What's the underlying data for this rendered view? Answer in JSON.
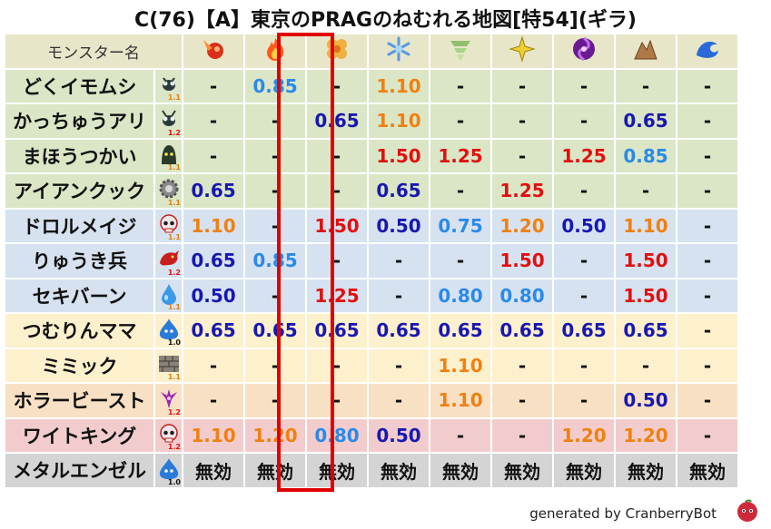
{
  "title": "C(76)【A】東京のPRAGのねむれる地図[特54](ギラ)",
  "header": {
    "name_label": "モンスター名"
  },
  "columns": [
    {
      "icon": "fire-orb-icon",
      "color": "#e0471c"
    },
    {
      "icon": "flame-icon",
      "color": "#ff6a1a"
    },
    {
      "icon": "explosion-icon",
      "color": "#e8b040"
    },
    {
      "icon": "ice-crystal-icon",
      "color": "#7fb6e8"
    },
    {
      "icon": "tornado-icon",
      "color": "#b8d890"
    },
    {
      "icon": "lightning-icon",
      "color": "#e8d040"
    },
    {
      "icon": "dark-vortex-icon",
      "color": "#7a2aa0"
    },
    {
      "icon": "rock-icon",
      "color": "#a07040"
    },
    {
      "icon": "wave-icon",
      "color": "#2a6ad8"
    }
  ],
  "colors": {
    "blue": "#1818b0",
    "lightblue": "#2a8ae8",
    "orange": "#f08010",
    "red": "#e01010",
    "black": "#111111"
  },
  "rows": [
    {
      "name": "どくイモムシ",
      "icon": "bug-icon",
      "mult": "1.1",
      "mult_color": "#e08010",
      "bg": "#dbe6c6",
      "cells": [
        {
          "t": "-",
          "c": "black"
        },
        {
          "t": "0.85",
          "c": "lightblue"
        },
        {
          "t": "-",
          "c": "black"
        },
        {
          "t": "1.10",
          "c": "orange"
        },
        {
          "t": "-",
          "c": "black"
        },
        {
          "t": "-",
          "c": "black"
        },
        {
          "t": "-",
          "c": "black"
        },
        {
          "t": "-",
          "c": "black"
        },
        {
          "t": "-",
          "c": "black"
        }
      ]
    },
    {
      "name": "かっちゅうアリ",
      "icon": "beetle-icon",
      "mult": "1.2",
      "mult_color": "#e01010",
      "bg": "#dbe6c6",
      "cells": [
        {
          "t": "-",
          "c": "black"
        },
        {
          "t": "-",
          "c": "black"
        },
        {
          "t": "0.65",
          "c": "blue"
        },
        {
          "t": "1.10",
          "c": "orange"
        },
        {
          "t": "-",
          "c": "black"
        },
        {
          "t": "-",
          "c": "black"
        },
        {
          "t": "-",
          "c": "black"
        },
        {
          "t": "0.65",
          "c": "blue"
        },
        {
          "t": "-",
          "c": "black"
        }
      ]
    },
    {
      "name": "まほうつかい",
      "icon": "hooded-mage-icon",
      "mult": "1.1",
      "mult_color": "#e08010",
      "bg": "#dbe6c6",
      "cells": [
        {
          "t": "-",
          "c": "black"
        },
        {
          "t": "-",
          "c": "black"
        },
        {
          "t": "-",
          "c": "black"
        },
        {
          "t": "1.50",
          "c": "red"
        },
        {
          "t": "1.25",
          "c": "red"
        },
        {
          "t": "-",
          "c": "black"
        },
        {
          "t": "1.25",
          "c": "red"
        },
        {
          "t": "0.85",
          "c": "lightblue"
        },
        {
          "t": "-",
          "c": "black"
        }
      ]
    },
    {
      "name": "アイアンクック",
      "icon": "gear-icon",
      "mult": "1.1",
      "mult_color": "#e08010",
      "bg": "#dbe6c6",
      "cells": [
        {
          "t": "0.65",
          "c": "blue"
        },
        {
          "t": "-",
          "c": "black"
        },
        {
          "t": "-",
          "c": "black"
        },
        {
          "t": "0.65",
          "c": "blue"
        },
        {
          "t": "-",
          "c": "black"
        },
        {
          "t": "1.25",
          "c": "red"
        },
        {
          "t": "-",
          "c": "black"
        },
        {
          "t": "-",
          "c": "black"
        },
        {
          "t": "-",
          "c": "black"
        }
      ]
    },
    {
      "name": "ドロルメイジ",
      "icon": "skull-icon",
      "mult": "1.1",
      "mult_color": "#e08010",
      "bg": "#d6e2f0",
      "cells": [
        {
          "t": "1.10",
          "c": "orange"
        },
        {
          "t": "-",
          "c": "black"
        },
        {
          "t": "1.50",
          "c": "red"
        },
        {
          "t": "0.50",
          "c": "blue"
        },
        {
          "t": "0.75",
          "c": "lightblue"
        },
        {
          "t": "1.20",
          "c": "orange"
        },
        {
          "t": "0.50",
          "c": "blue"
        },
        {
          "t": "1.10",
          "c": "orange"
        },
        {
          "t": "-",
          "c": "black"
        }
      ]
    },
    {
      "name": "りゅうき兵",
      "icon": "dragon-icon",
      "mult": "1.2",
      "mult_color": "#e01010",
      "bg": "#d6e2f0",
      "cells": [
        {
          "t": "0.65",
          "c": "blue"
        },
        {
          "t": "0.85",
          "c": "lightblue"
        },
        {
          "t": "-",
          "c": "black"
        },
        {
          "t": "-",
          "c": "black"
        },
        {
          "t": "-",
          "c": "black"
        },
        {
          "t": "1.50",
          "c": "red"
        },
        {
          "t": "-",
          "c": "black"
        },
        {
          "t": "1.50",
          "c": "red"
        },
        {
          "t": "-",
          "c": "black"
        }
      ]
    },
    {
      "name": "セキバーン",
      "icon": "water-drop-icon",
      "mult": "1.1",
      "mult_color": "#e08010",
      "bg": "#d6e2f0",
      "cells": [
        {
          "t": "0.50",
          "c": "blue"
        },
        {
          "t": "-",
          "c": "black"
        },
        {
          "t": "1.25",
          "c": "red"
        },
        {
          "t": "-",
          "c": "black"
        },
        {
          "t": "0.80",
          "c": "lightblue"
        },
        {
          "t": "0.80",
          "c": "lightblue"
        },
        {
          "t": "-",
          "c": "black"
        },
        {
          "t": "1.50",
          "c": "red"
        },
        {
          "t": "-",
          "c": "black"
        }
      ]
    },
    {
      "name": "つむりんママ",
      "icon": "slime-icon",
      "mult": "1.0",
      "mult_color": "#111111",
      "bg": "#fdf0cc",
      "cells": [
        {
          "t": "0.65",
          "c": "blue"
        },
        {
          "t": "0.65",
          "c": "blue"
        },
        {
          "t": "0.65",
          "c": "blue"
        },
        {
          "t": "0.65",
          "c": "blue"
        },
        {
          "t": "0.65",
          "c": "blue"
        },
        {
          "t": "0.65",
          "c": "blue"
        },
        {
          "t": "0.65",
          "c": "blue"
        },
        {
          "t": "0.65",
          "c": "blue"
        },
        {
          "t": "-",
          "c": "black"
        }
      ]
    },
    {
      "name": "ミミック",
      "icon": "brick-wall-icon",
      "mult": "1.1",
      "mult_color": "#e08010",
      "bg": "#fdf0cc",
      "cells": [
        {
          "t": "-",
          "c": "black"
        },
        {
          "t": "-",
          "c": "black"
        },
        {
          "t": "-",
          "c": "black"
        },
        {
          "t": "-",
          "c": "black"
        },
        {
          "t": "1.10",
          "c": "orange"
        },
        {
          "t": "-",
          "c": "black"
        },
        {
          "t": "-",
          "c": "black"
        },
        {
          "t": "-",
          "c": "black"
        },
        {
          "t": "-",
          "c": "black"
        }
      ]
    },
    {
      "name": "ホラービースト",
      "icon": "demon-icon",
      "mult": "1.2",
      "mult_color": "#e01010",
      "bg": "#f8e0c4",
      "cells": [
        {
          "t": "-",
          "c": "black"
        },
        {
          "t": "-",
          "c": "black"
        },
        {
          "t": "-",
          "c": "black"
        },
        {
          "t": "-",
          "c": "black"
        },
        {
          "t": "1.10",
          "c": "orange"
        },
        {
          "t": "-",
          "c": "black"
        },
        {
          "t": "-",
          "c": "black"
        },
        {
          "t": "0.50",
          "c": "blue"
        },
        {
          "t": "-",
          "c": "black"
        }
      ]
    },
    {
      "name": "ワイトキング",
      "icon": "skull-icon",
      "mult": "1.2",
      "mult_color": "#e01010",
      "bg": "#f2cccc",
      "cells": [
        {
          "t": "1.10",
          "c": "orange"
        },
        {
          "t": "1.20",
          "c": "orange"
        },
        {
          "t": "0.80",
          "c": "lightblue"
        },
        {
          "t": "0.50",
          "c": "blue"
        },
        {
          "t": "-",
          "c": "black"
        },
        {
          "t": "-",
          "c": "black"
        },
        {
          "t": "1.20",
          "c": "orange"
        },
        {
          "t": "1.20",
          "c": "orange"
        },
        {
          "t": "-",
          "c": "black"
        }
      ]
    },
    {
      "name": "メタルエンゼル",
      "icon": "slime-icon",
      "mult": "1.0",
      "mult_color": "#111111",
      "bg": "#d4d4d4",
      "cells": [
        {
          "t": "無効",
          "c": "black"
        },
        {
          "t": "無効",
          "c": "black"
        },
        {
          "t": "無効",
          "c": "black"
        },
        {
          "t": "無効",
          "c": "black"
        },
        {
          "t": "無効",
          "c": "black"
        },
        {
          "t": "無効",
          "c": "black"
        },
        {
          "t": "無効",
          "c": "black"
        },
        {
          "t": "無効",
          "c": "black"
        },
        {
          "t": "無効",
          "c": "black"
        }
      ]
    }
  ],
  "footer": {
    "text": "generated by CranberryBot",
    "logo_icon": "cranberry-bot-icon"
  }
}
